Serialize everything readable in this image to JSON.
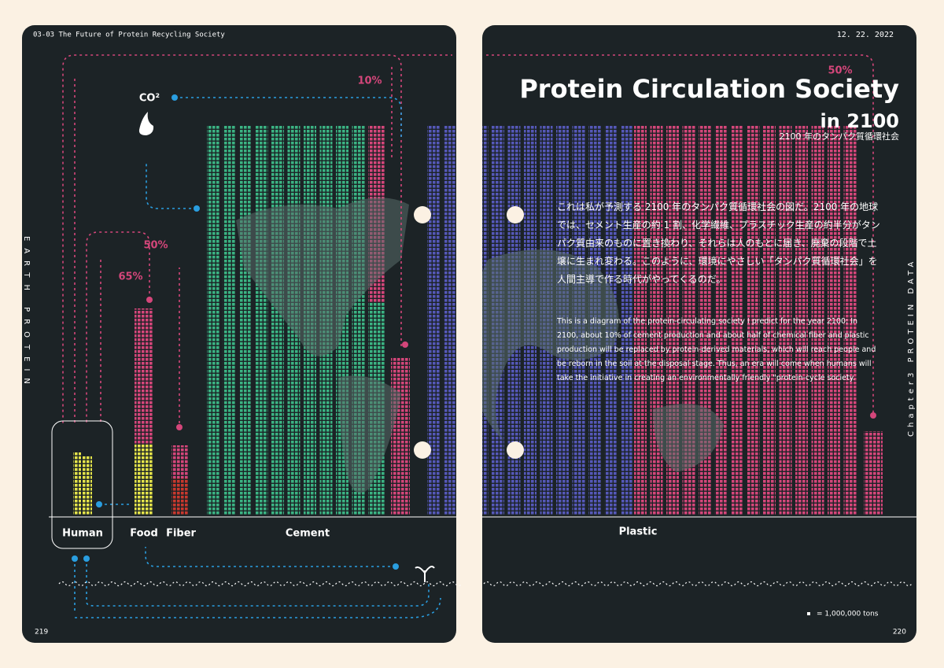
{
  "header": {
    "left": "03-03 The Future of Protein Recycling Society",
    "date": "12. 22. 2022"
  },
  "title": {
    "main": "Protein Circulation Society",
    "sub": "in 2100",
    "japanese": "2100 年のタンパク質循環社会"
  },
  "side": {
    "left": "EARTH PROTEIN",
    "right": "Chapter3 PROTEIN DATA"
  },
  "body": {
    "japanese": "これは私が予測する 2100 年のタンパク質循環社会の図だ。2100 年の地球では、セメント生産の約 1 割、化学繊維、プラスチック生産の約半分がタンパク質由来のものに置き換わり、それらは人のもとに届き、廃棄の段階で土壌に生まれ変わる。このように、環境にやさしい「タンパク質循環社会」を人間主導で作る時代がやってくるのだ。",
    "english": "This is a diagram of the protein-circulating society I predict for the year 2100: In 2100, about 10% of cement production and about half of chemical fiber and plastic production will be replaced by protein-derived materials, which will reach people and be reborn in the soil at the disposal stage. Thus, an era will come when humans will take the initiative in creating an environmentally friendly \"protein-cycle society."
  },
  "labels": {
    "human": "Human",
    "food": "Food",
    "fiber": "Fiber",
    "cement": "Cement",
    "plastic": "Plastic",
    "co2": "CO²"
  },
  "percentages": {
    "cement": "10%",
    "plastic": "50%",
    "fiber": "50%",
    "food": "65%"
  },
  "legend": "= 1,000,000 tons",
  "pages": {
    "left": "219",
    "right": "220"
  }
}
